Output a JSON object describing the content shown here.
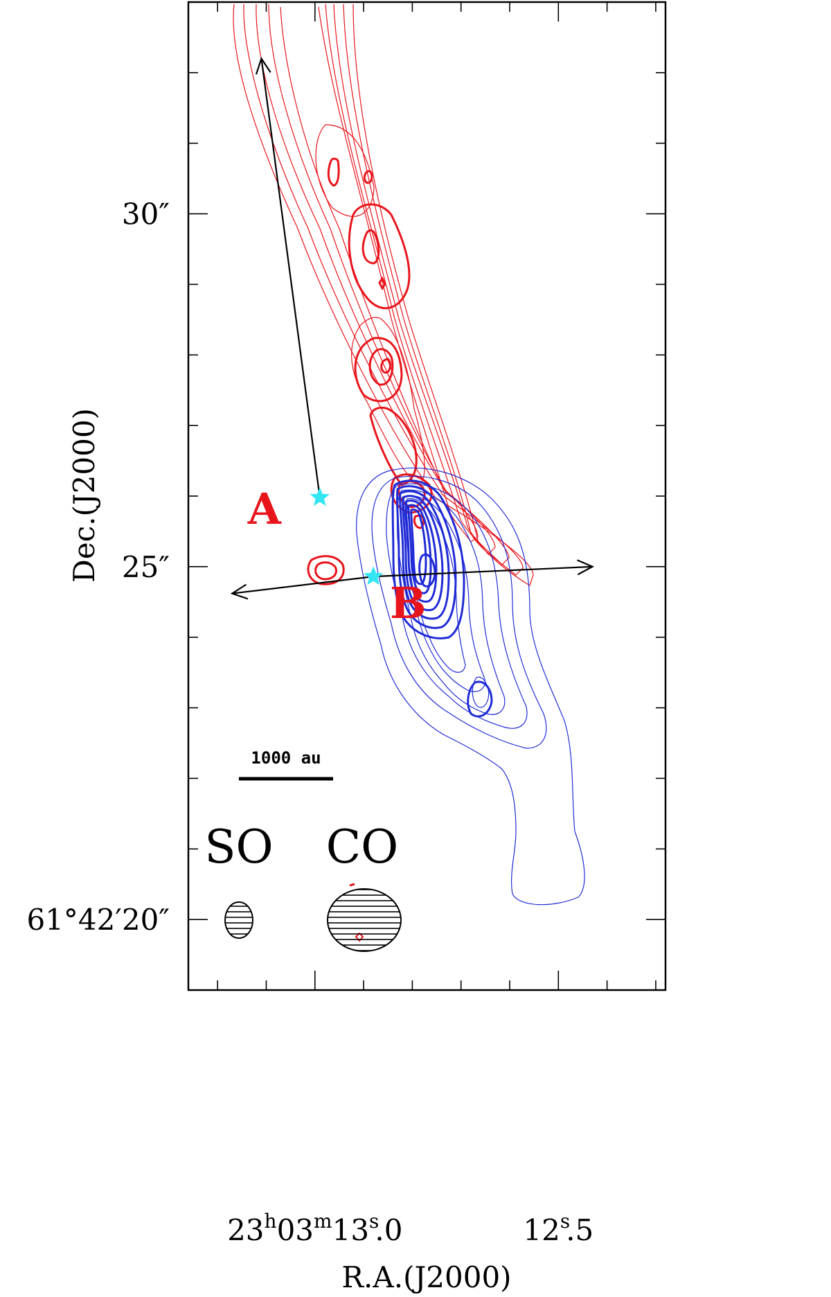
{
  "chart_data": {
    "type": "contour",
    "xlabel": "R.A.(J2000)",
    "ylabel": "Dec.(J2000)",
    "x_ticks": [
      {
        "label_parts": [
          "23",
          "h",
          "03",
          "m",
          "13",
          "s",
          ".0"
        ],
        "ra_sec": 13.0
      },
      {
        "label_parts": [
          "12",
          "s",
          ".5"
        ],
        "ra_sec": 12.5
      }
    ],
    "y_ticks": [
      {
        "label": "30″",
        "dec_arcsec": 30
      },
      {
        "label": "25″",
        "dec_arcsec": 25
      },
      {
        "label": "61°42′20″",
        "dec_arcsec": 20
      }
    ],
    "xlim_ra_sec": [
      13.26,
      12.28
    ],
    "ylim_dec_arcsec": [
      19,
      33
    ],
    "sources": [
      {
        "name": "A",
        "ra_sec": 12.99,
        "dec_arcsec": 25.98
      },
      {
        "name": "B",
        "ra_sec": 12.88,
        "dec_arcsec": 24.86
      }
    ],
    "outflow_arrows": [
      {
        "from": "A",
        "ra_sec": 13.11,
        "dec_arcsec": 32.2
      },
      {
        "from": "B",
        "ra_sec": 13.17,
        "dec_arcsec": 24.62
      },
      {
        "from": "B",
        "ra_sec": 12.43,
        "dec_arcsec": 25.0
      }
    ],
    "series": [
      {
        "name": "redshifted",
        "color": "#e8141b"
      },
      {
        "name": "blueshifted",
        "color": "#1f2bd6"
      }
    ],
    "scale_bar": {
      "label": "1000 au",
      "length_au": 1000
    },
    "beams": [
      {
        "name": "SO"
      },
      {
        "name": "CO"
      }
    ]
  },
  "colors": {
    "red": "#e8141b",
    "blue": "#1f2bd6",
    "star": "#33e6f2",
    "axis": "#000000"
  }
}
